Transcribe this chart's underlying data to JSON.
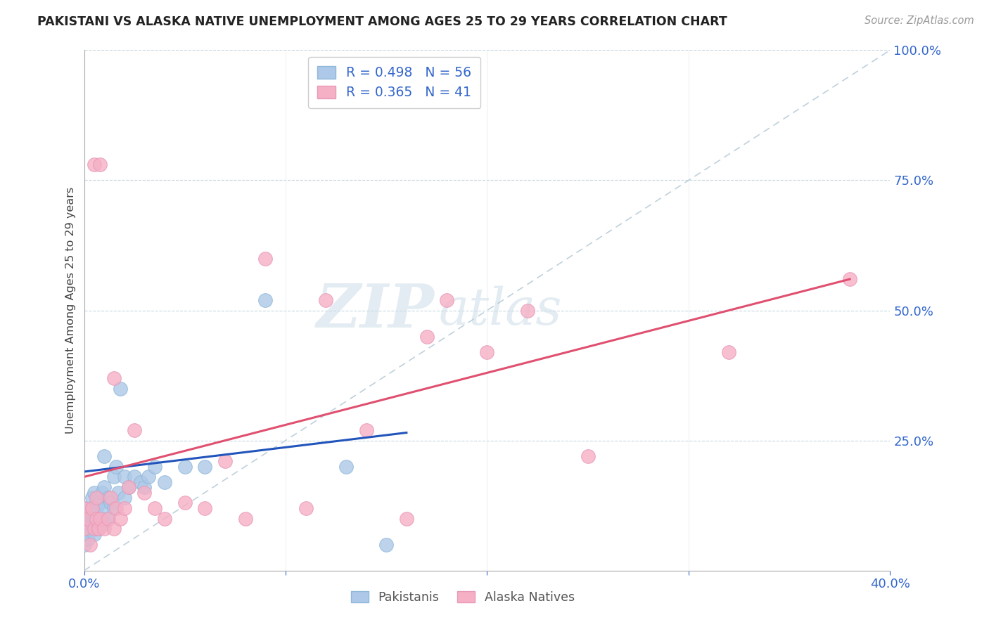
{
  "title": "PAKISTANI VS ALASKA NATIVE UNEMPLOYMENT AMONG AGES 25 TO 29 YEARS CORRELATION CHART",
  "source": "Source: ZipAtlas.com",
  "ylabel": "Unemployment Among Ages 25 to 29 years",
  "xlim": [
    0.0,
    0.4
  ],
  "ylim": [
    0.0,
    1.0
  ],
  "pakistani_R": 0.498,
  "pakistani_N": 56,
  "alaska_R": 0.365,
  "alaska_N": 41,
  "pakistani_color": "#adc8e8",
  "alaska_color": "#f5b0c5",
  "pakistani_line_color": "#2255bb",
  "alaska_line_color": "#e05070",
  "diagonal_color": "#b8ccd8",
  "watermark_zip": "ZIP",
  "watermark_atlas": "atlas",
  "pakistani_x": [
    0.0,
    0.0,
    0.0,
    0.0,
    0.0,
    0.0,
    0.0,
    0.0,
    0.0,
    0.0,
    0.002,
    0.002,
    0.003,
    0.003,
    0.004,
    0.004,
    0.004,
    0.005,
    0.005,
    0.005,
    0.005,
    0.006,
    0.006,
    0.007,
    0.007,
    0.007,
    0.008,
    0.008,
    0.009,
    0.009,
    0.01,
    0.01,
    0.01,
    0.01,
    0.012,
    0.012,
    0.013,
    0.015,
    0.015,
    0.016,
    0.017,
    0.018,
    0.02,
    0.02,
    0.022,
    0.025,
    0.028,
    0.03,
    0.032,
    0.035,
    0.04,
    0.05,
    0.06,
    0.09,
    0.13,
    0.15
  ],
  "pakistani_y": [
    0.05,
    0.06,
    0.07,
    0.08,
    0.08,
    0.09,
    0.1,
    0.1,
    0.11,
    0.12,
    0.06,
    0.09,
    0.08,
    0.12,
    0.08,
    0.1,
    0.14,
    0.07,
    0.1,
    0.12,
    0.15,
    0.08,
    0.12,
    0.08,
    0.1,
    0.14,
    0.09,
    0.13,
    0.1,
    0.15,
    0.09,
    0.12,
    0.16,
    0.22,
    0.1,
    0.14,
    0.13,
    0.12,
    0.18,
    0.2,
    0.15,
    0.35,
    0.14,
    0.18,
    0.16,
    0.18,
    0.17,
    0.16,
    0.18,
    0.2,
    0.17,
    0.2,
    0.2,
    0.52,
    0.2,
    0.05
  ],
  "alaska_x": [
    0.0,
    0.0,
    0.002,
    0.003,
    0.004,
    0.005,
    0.005,
    0.006,
    0.006,
    0.007,
    0.008,
    0.008,
    0.01,
    0.012,
    0.013,
    0.015,
    0.015,
    0.016,
    0.018,
    0.02,
    0.022,
    0.025,
    0.03,
    0.035,
    0.04,
    0.05,
    0.06,
    0.07,
    0.08,
    0.09,
    0.11,
    0.12,
    0.14,
    0.16,
    0.17,
    0.18,
    0.2,
    0.22,
    0.25,
    0.32,
    0.38
  ],
  "alaska_y": [
    0.08,
    0.12,
    0.1,
    0.05,
    0.12,
    0.08,
    0.78,
    0.1,
    0.14,
    0.08,
    0.1,
    0.78,
    0.08,
    0.1,
    0.14,
    0.08,
    0.37,
    0.12,
    0.1,
    0.12,
    0.16,
    0.27,
    0.15,
    0.12,
    0.1,
    0.13,
    0.12,
    0.21,
    0.1,
    0.6,
    0.12,
    0.52,
    0.27,
    0.1,
    0.45,
    0.52,
    0.42,
    0.5,
    0.22,
    0.42,
    0.56
  ],
  "pak_line_x0": 0.0,
  "pak_line_y0": 0.19,
  "pak_line_x1": 0.16,
  "pak_line_y1": 0.265,
  "ala_line_x0": 0.0,
  "ala_line_y0": 0.18,
  "ala_line_x1": 0.38,
  "ala_line_y1": 0.56
}
